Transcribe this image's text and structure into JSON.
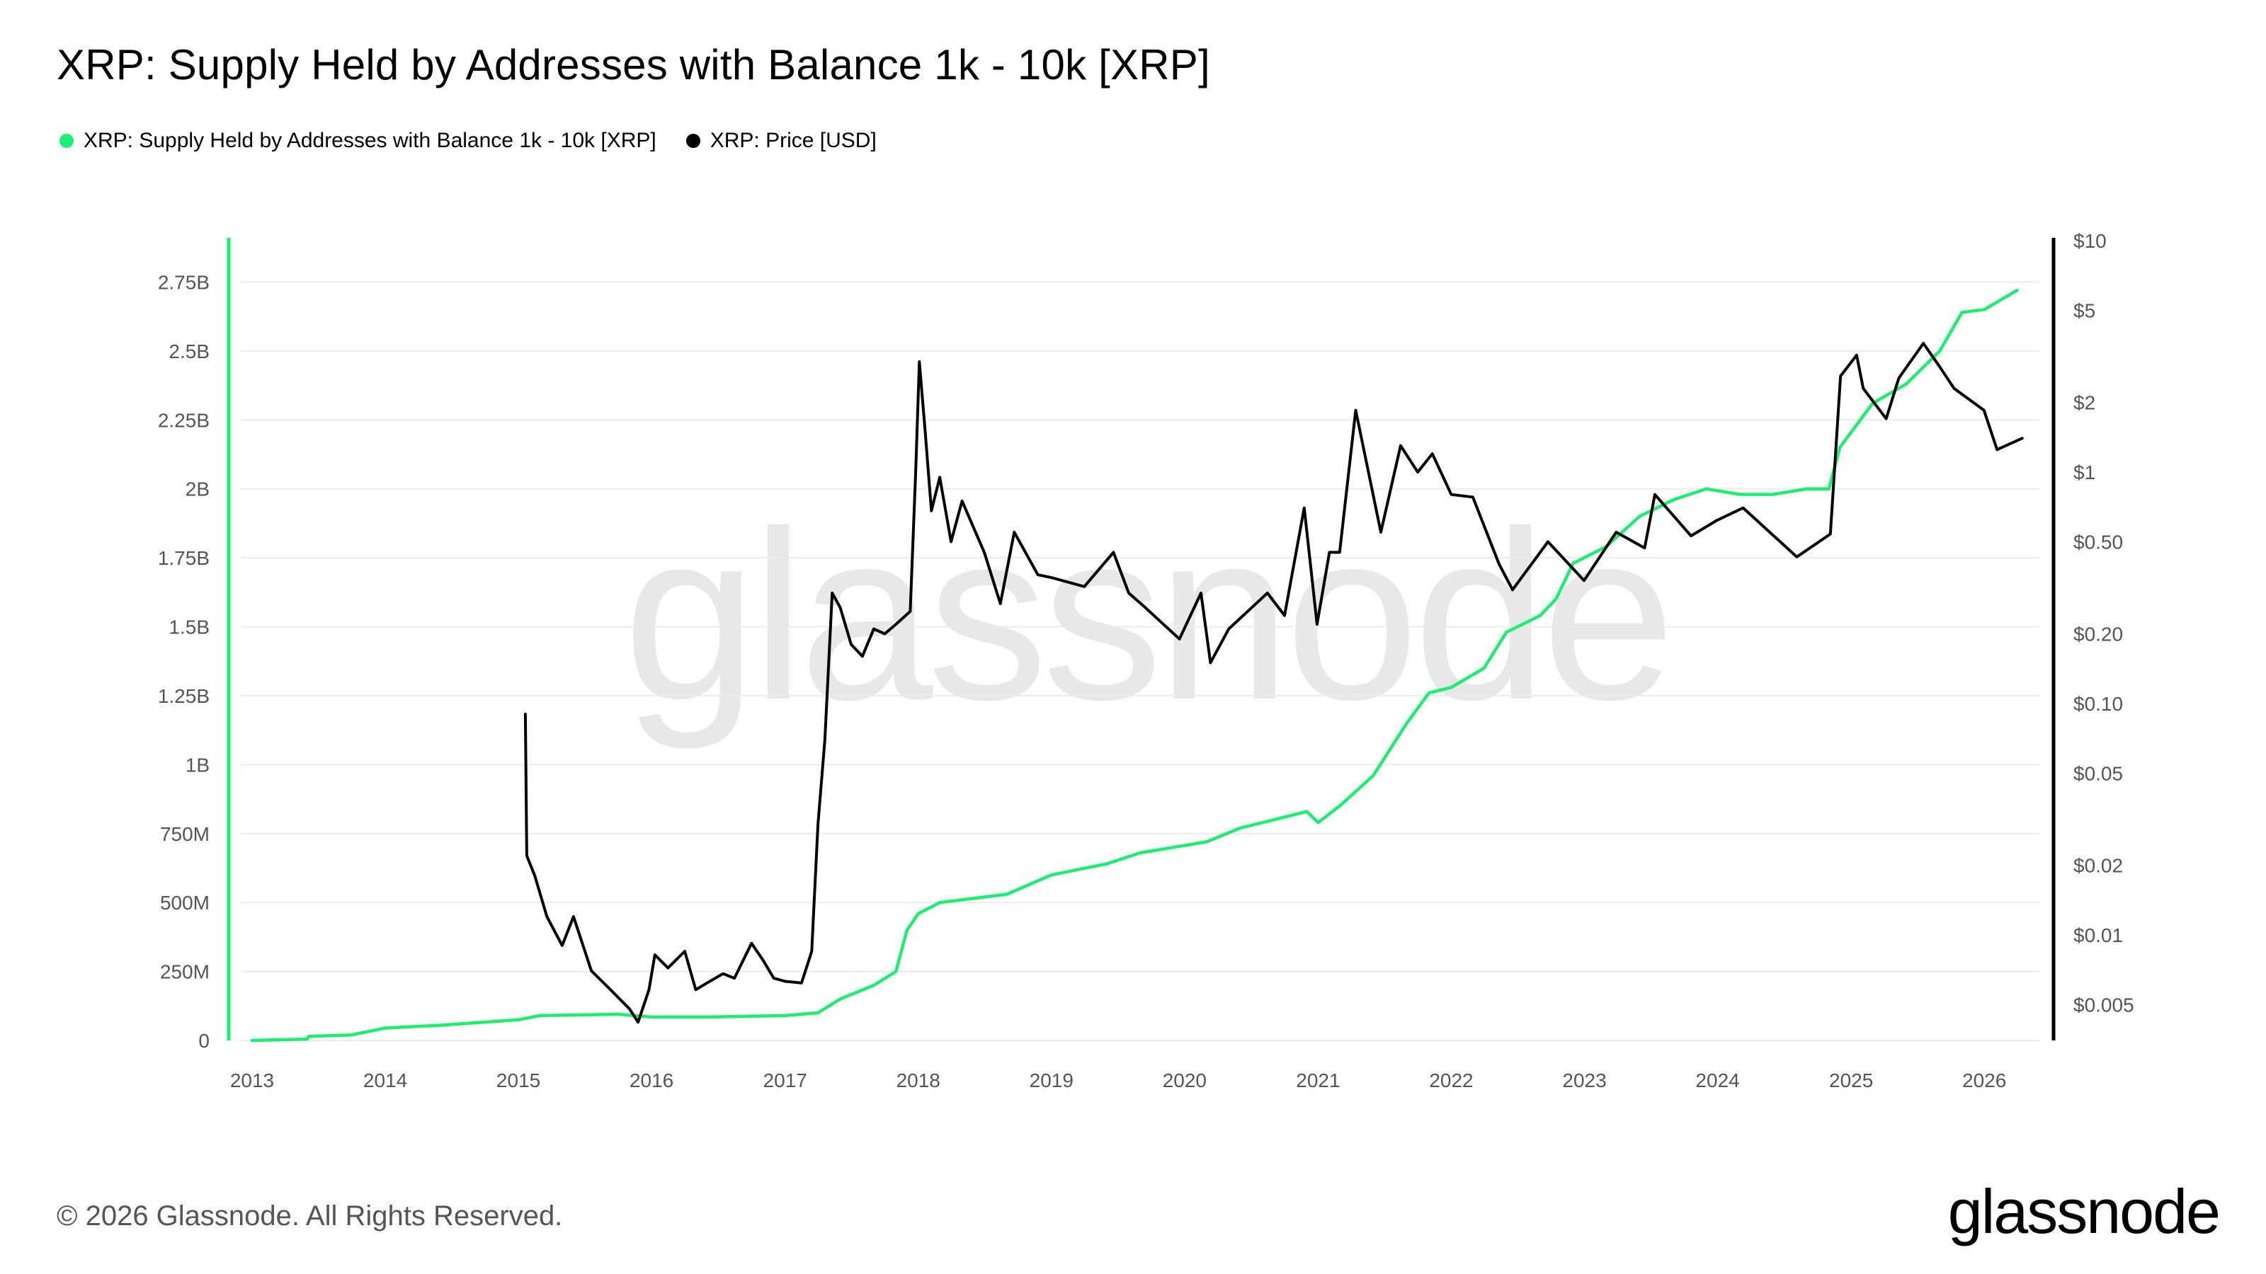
{
  "header": {
    "title": "XRP: Supply Held by Addresses with Balance 1k - 10k [XRP]"
  },
  "legend": [
    {
      "label": "XRP: Supply Held by Addresses with Balance 1k - 10k [XRP]",
      "color": "#1bef6f"
    },
    {
      "label": "XRP: Price [USD]",
      "color": "#000000"
    }
  ],
  "footer": {
    "copyright": "© 2026 Glassnode. All Rights Reserved.",
    "logo": "glassnode",
    "watermark": "glassnode"
  },
  "chart_data": {
    "type": "line",
    "title": "XRP: Supply Held by Addresses with Balance 1k - 10k [XRP]",
    "grid": true,
    "legend_placement": "top-left",
    "x_axis": {
      "type": "date",
      "range": [
        "2012-12-01",
        "2026-06-01"
      ],
      "ticks": [
        "2013",
        "2014",
        "2015",
        "2016",
        "2017",
        "2018",
        "2019",
        "2020",
        "2021",
        "2022",
        "2023",
        "2024",
        "2025",
        "2026"
      ]
    },
    "y_axis_left": {
      "range": [
        0,
        2900000000
      ],
      "tick_values": [
        0,
        250000000,
        500000000,
        750000000,
        1000000000,
        1250000000,
        1500000000,
        1750000000,
        2000000000,
        2250000000,
        2500000000,
        2750000000
      ],
      "tick_labels": [
        "0",
        "250M",
        "500M",
        "750M",
        "1B",
        "1.25B",
        "1.5B",
        "1.75B",
        "2B",
        "2.25B",
        "2.5B",
        "2.75B"
      ]
    },
    "y_axis_right": {
      "scale": "log",
      "range": [
        0.0035,
        10
      ],
      "tick_values": [
        0.005,
        0.01,
        0.02,
        0.05,
        0.1,
        0.2,
        0.5,
        1,
        2,
        5,
        10
      ],
      "tick_labels": [
        "$0.005",
        "$0.01",
        "$0.02",
        "$0.05",
        "$0.10",
        "$0.20",
        "$0.50",
        "$1",
        "$2",
        "$5",
        "$10"
      ]
    },
    "series": [
      {
        "name": "XRP: Supply Held by Addresses with Balance 1k - 10k [XRP]",
        "axis": "left",
        "color": "#1bef6f",
        "points": [
          [
            "2013-01-01",
            0
          ],
          [
            "2013-06-01",
            5000000
          ],
          [
            "2013-06-05",
            15000000
          ],
          [
            "2013-10-01",
            20000000
          ],
          [
            "2014-01-01",
            45000000
          ],
          [
            "2014-06-01",
            55000000
          ],
          [
            "2015-01-01",
            75000000
          ],
          [
            "2015-03-01",
            90000000
          ],
          [
            "2015-10-01",
            95000000
          ],
          [
            "2016-01-01",
            85000000
          ],
          [
            "2016-06-01",
            85000000
          ],
          [
            "2017-01-01",
            90000000
          ],
          [
            "2017-04-01",
            100000000
          ],
          [
            "2017-06-01",
            150000000
          ],
          [
            "2017-09-01",
            200000000
          ],
          [
            "2017-11-01",
            250000000
          ],
          [
            "2017-12-01",
            400000000
          ],
          [
            "2018-01-01",
            460000000
          ],
          [
            "2018-03-01",
            500000000
          ],
          [
            "2018-09-01",
            530000000
          ],
          [
            "2019-01-01",
            600000000
          ],
          [
            "2019-06-01",
            640000000
          ],
          [
            "2019-09-01",
            680000000
          ],
          [
            "2019-12-01",
            700000000
          ],
          [
            "2020-03-01",
            720000000
          ],
          [
            "2020-06-01",
            770000000
          ],
          [
            "2020-09-01",
            800000000
          ],
          [
            "2020-12-01",
            830000000
          ],
          [
            "2021-01-01",
            790000000
          ],
          [
            "2021-03-01",
            850000000
          ],
          [
            "2021-06-01",
            960000000
          ],
          [
            "2021-09-01",
            1150000000
          ],
          [
            "2021-11-01",
            1260000000
          ],
          [
            "2022-01-01",
            1280000000
          ],
          [
            "2022-04-01",
            1350000000
          ],
          [
            "2022-06-01",
            1480000000
          ],
          [
            "2022-09-01",
            1540000000
          ],
          [
            "2022-10-15",
            1600000000
          ],
          [
            "2022-12-01",
            1730000000
          ],
          [
            "2023-03-01",
            1790000000
          ],
          [
            "2023-06-01",
            1900000000
          ],
          [
            "2023-09-01",
            1960000000
          ],
          [
            "2023-12-01",
            2000000000
          ],
          [
            "2024-03-01",
            1980000000
          ],
          [
            "2024-06-01",
            1980000000
          ],
          [
            "2024-09-01",
            2000000000
          ],
          [
            "2024-11-01",
            2000000000
          ],
          [
            "2024-12-01",
            2150000000
          ],
          [
            "2025-03-01",
            2310000000
          ],
          [
            "2025-06-01",
            2380000000
          ],
          [
            "2025-09-01",
            2500000000
          ],
          [
            "2025-11-01",
            2640000000
          ],
          [
            "2026-01-01",
            2650000000
          ],
          [
            "2026-04-01",
            2720000000
          ]
        ]
      },
      {
        "name": "XRP: Price [USD]",
        "axis": "right",
        "color": "#000000",
        "points": [
          [
            "2015-01-20",
            0.09
          ],
          [
            "2015-01-24",
            0.022
          ],
          [
            "2015-02-15",
            0.018
          ],
          [
            "2015-03-20",
            0.012
          ],
          [
            "2015-05-01",
            0.009
          ],
          [
            "2015-06-01",
            0.012
          ],
          [
            "2015-07-20",
            0.007
          ],
          [
            "2015-09-01",
            0.006
          ],
          [
            "2015-11-01",
            0.0048
          ],
          [
            "2015-11-25",
            0.0042
          ],
          [
            "2015-12-25",
            0.0058
          ],
          [
            "2016-01-10",
            0.0082
          ],
          [
            "2016-02-15",
            0.0072
          ],
          [
            "2016-04-01",
            0.0085
          ],
          [
            "2016-05-01",
            0.0058
          ],
          [
            "2016-06-01",
            0.0062
          ],
          [
            "2016-07-15",
            0.0068
          ],
          [
            "2016-08-15",
            0.0065
          ],
          [
            "2016-10-01",
            0.0092
          ],
          [
            "2016-11-01",
            0.0078
          ],
          [
            "2016-12-01",
            0.0065
          ],
          [
            "2017-01-01",
            0.0063
          ],
          [
            "2017-02-15",
            0.0062
          ],
          [
            "2017-03-15",
            0.0085
          ],
          [
            "2017-04-01",
            0.03
          ],
          [
            "2017-04-20",
            0.07
          ],
          [
            "2017-05-10",
            0.3
          ],
          [
            "2017-06-01",
            0.26
          ],
          [
            "2017-07-01",
            0.18
          ],
          [
            "2017-08-01",
            0.16
          ],
          [
            "2017-09-01",
            0.21
          ],
          [
            "2017-10-01",
            0.2
          ],
          [
            "2017-11-01",
            0.22
          ],
          [
            "2017-12-10",
            0.25
          ],
          [
            "2017-12-25",
            1.0
          ],
          [
            "2018-01-04",
            3.0
          ],
          [
            "2018-01-20",
            1.5
          ],
          [
            "2018-02-06",
            0.68
          ],
          [
            "2018-03-01",
            0.95
          ],
          [
            "2018-04-01",
            0.5
          ],
          [
            "2018-05-01",
            0.75
          ],
          [
            "2018-07-01",
            0.45
          ],
          [
            "2018-08-14",
            0.27
          ],
          [
            "2018-09-21",
            0.55
          ],
          [
            "2018-11-25",
            0.36
          ],
          [
            "2019-01-01",
            0.35
          ],
          [
            "2019-04-01",
            0.32
          ],
          [
            "2019-06-20",
            0.45
          ],
          [
            "2019-08-01",
            0.3
          ],
          [
            "2019-09-15",
            0.26
          ],
          [
            "2019-12-18",
            0.19
          ],
          [
            "2020-02-15",
            0.3
          ],
          [
            "2020-03-12",
            0.15
          ],
          [
            "2020-05-01",
            0.21
          ],
          [
            "2020-08-15",
            0.3
          ],
          [
            "2020-10-01",
            0.24
          ],
          [
            "2020-11-24",
            0.7
          ],
          [
            "2020-12-29",
            0.22
          ],
          [
            "2021-02-01",
            0.45
          ],
          [
            "2021-03-01",
            0.45
          ],
          [
            "2021-04-14",
            1.85
          ],
          [
            "2021-06-22",
            0.55
          ],
          [
            "2021-08-15",
            1.3
          ],
          [
            "2021-10-01",
            1.0
          ],
          [
            "2021-11-10",
            1.2
          ],
          [
            "2022-01-01",
            0.8
          ],
          [
            "2022-03-01",
            0.78
          ],
          [
            "2022-05-12",
            0.4
          ],
          [
            "2022-06-18",
            0.31
          ],
          [
            "2022-09-23",
            0.5
          ],
          [
            "2022-12-31",
            0.34
          ],
          [
            "2023-03-29",
            0.55
          ],
          [
            "2023-06-15",
            0.47
          ],
          [
            "2023-07-13",
            0.8
          ],
          [
            "2023-10-20",
            0.53
          ],
          [
            "2023-12-31",
            0.62
          ],
          [
            "2024-03-11",
            0.7
          ],
          [
            "2024-08-05",
            0.43
          ],
          [
            "2024-11-05",
            0.54
          ],
          [
            "2024-12-03",
            2.6
          ],
          [
            "2025-01-16",
            3.2
          ],
          [
            "2025-02-03",
            2.3
          ],
          [
            "2025-04-07",
            1.7
          ],
          [
            "2025-05-12",
            2.55
          ],
          [
            "2025-07-18",
            3.6
          ],
          [
            "2025-09-01",
            2.85
          ],
          [
            "2025-10-10",
            2.3
          ],
          [
            "2025-12-31",
            1.85
          ],
          [
            "2026-02-05",
            1.25
          ],
          [
            "2026-04-15",
            1.4
          ]
        ]
      }
    ]
  }
}
